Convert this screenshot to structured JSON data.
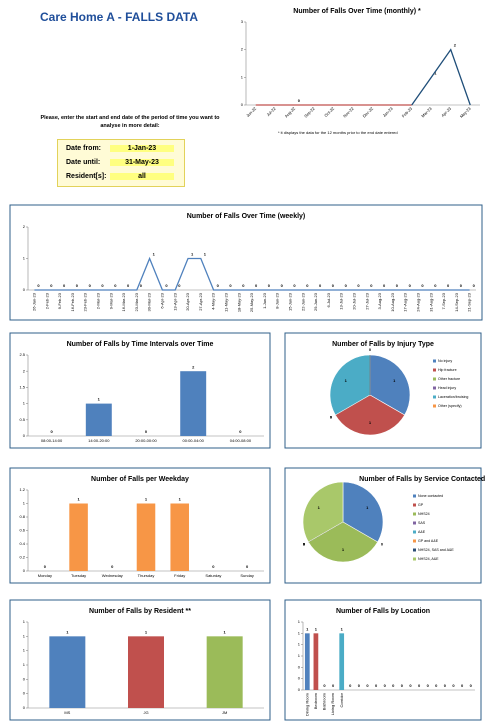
{
  "header": {
    "title": "Care Home A - FALLS DATA"
  },
  "form": {
    "instruction": "Please, enter the start and end date of the period of time you want to analyse in more detail:",
    "fields": [
      {
        "label": "Date from:",
        "value": "1-Jan-23"
      },
      {
        "label": "Date until:",
        "value": "31-May-23"
      },
      {
        "label": "Resident[s]:",
        "value": "all"
      }
    ]
  },
  "chart_data": [
    {
      "type": "line",
      "title": "Number of Falls Over Time (monthly) *",
      "note": "* it displays the data for the 12 months prior to the end date entered",
      "categories": [
        "Jun-22",
        "Jul-22",
        "Aug-22",
        "Sep-22",
        "Oct-22",
        "Nov-22",
        "Dec-22",
        "Jan-23",
        "Feb-23",
        "Mar-23",
        "Apr-23",
        "May-23"
      ],
      "series": [
        {
          "color": "#c0504d",
          "values": [
            0,
            0,
            0,
            0,
            0,
            0,
            0,
            0,
            0,
            null,
            null,
            null
          ],
          "value_labels": [
            null,
            null,
            "0",
            null,
            null,
            null,
            null,
            null,
            null,
            null,
            null,
            null
          ]
        },
        {
          "color": "#1f4e79",
          "values": [
            null,
            null,
            null,
            null,
            null,
            null,
            null,
            null,
            0,
            1,
            2,
            0
          ],
          "value_labels": [
            null,
            null,
            null,
            null,
            null,
            null,
            null,
            null,
            null,
            "1",
            "2",
            null
          ]
        }
      ],
      "ylim": [
        0,
        3
      ],
      "yticks": [
        0,
        1,
        2,
        3
      ]
    },
    {
      "type": "line",
      "title": "Number of Falls Over Time  (weekly)",
      "categories": [
        "26-Jan-23",
        "2-Feb-23",
        "9-Feb-23",
        "16-Feb-23",
        "23-Feb-23",
        "2-Mar-23",
        "9-Mar-23",
        "16-Mar-23",
        "23-Mar-23",
        "30-Mar-23",
        "6-Apr-23",
        "13-Apr-23",
        "20-Apr-23",
        "27-Apr-23",
        "4-May-23",
        "11-May-23",
        "18-May-23",
        "25-May-23",
        "1-Jun-23",
        "8-Jun-23",
        "15-Jun-23",
        "22-Jun-23",
        "29-Jun-23",
        "6-Jul-23",
        "13-Jul-23",
        "20-Jul-23",
        "27-Jul-23",
        "3-Aug-23",
        "10-Aug-23",
        "17-Aug-23",
        "24-Aug-23",
        "31-Aug-23",
        "7-Sep-23",
        "14-Sep-23",
        "21-Sep-23"
      ],
      "series": [
        {
          "color": "#4f81bd",
          "values": [
            0,
            0,
            0,
            0,
            0,
            0,
            0,
            0,
            0,
            1,
            0,
            0,
            1,
            1,
            0,
            0,
            0,
            0,
            0,
            0,
            0,
            0,
            0,
            0,
            0,
            0,
            0,
            0,
            0,
            0,
            0,
            0,
            0,
            0,
            0
          ]
        }
      ],
      "data_labels": true,
      "ylim": [
        0,
        2
      ],
      "yticks": [
        0,
        1,
        2
      ]
    },
    {
      "type": "bar",
      "title": "Number of Falls by Time Intervals over Time",
      "categories": [
        "08:00-14:00",
        "14:00-20:00",
        "20:00-00:00",
        "00:00-04:00",
        "04:00-08:00"
      ],
      "values": [
        0,
        1,
        0,
        2,
        0
      ],
      "colors": [
        "#4f81bd"
      ],
      "data_labels": true,
      "ylim": [
        0,
        2.5
      ],
      "yticks": [
        0,
        0.5,
        1,
        1.5,
        2,
        2.5
      ]
    },
    {
      "type": "pie",
      "title": "Number of Falls by Injury Type",
      "categories": [
        "No injury",
        "Hip fracture",
        "Other fracture",
        "Head injury",
        "Laceration/bruising",
        "Other (specify)"
      ],
      "values": [
        1,
        1,
        0,
        0,
        1,
        0
      ],
      "colors": [
        "#4f81bd",
        "#c0504d",
        "#9bbb59",
        "#8064a2",
        "#4bacc6",
        "#f79646"
      ]
    },
    {
      "type": "bar",
      "title": "Number of Falls per Weekday",
      "categories": [
        "Monday",
        "Tuesday",
        "Wednesday",
        "Thursday",
        "Friday",
        "Saturday",
        "Sunday"
      ],
      "values": [
        0,
        1,
        0,
        1,
        1,
        0,
        0
      ],
      "colors": [
        "#f79646"
      ],
      "data_labels": true,
      "ylim": [
        0,
        1.2
      ],
      "yticks": [
        0,
        0.2,
        0.4,
        0.6,
        0.8,
        1,
        1.2
      ]
    },
    {
      "type": "pie",
      "title": "Number of Falls by Service Contacted",
      "categories": [
        "None contacted",
        "GP",
        "NHS24",
        "SAS",
        "A&E",
        "GP and A&E",
        "NHS24, SAS and A&E",
        "NHS24, A&E"
      ],
      "values": [
        1,
        0,
        1,
        0,
        0,
        0,
        0,
        1
      ],
      "colors": [
        "#4f81bd",
        "#c0504d",
        "#9bbb59",
        "#8064a2",
        "#4bacc6",
        "#f79646",
        "#2c4d75",
        "#a9c86a"
      ]
    },
    {
      "type": "bar",
      "title": "Number of Falls by Resident **",
      "categories": [
        "MS",
        "JG",
        "JM"
      ],
      "values": [
        1,
        1,
        1
      ],
      "colors": [
        "#4f81bd",
        "#c0504d",
        "#9bbb59"
      ],
      "data_labels": true,
      "ylim": [
        0,
        1.2
      ],
      "yticks": [
        0,
        {
          "value": 0.2,
          "label": "0"
        },
        {
          "value": 0.4,
          "label": "0"
        },
        {
          "value": 0.6,
          "label": "1"
        },
        {
          "value": 0.8,
          "label": "1"
        },
        1,
        {
          "value": 1.2,
          "label": "1"
        }
      ]
    },
    {
      "type": "bar",
      "title": "Number of Falls by Location",
      "categories": [
        "Dining Room",
        "Bedroom",
        "Bathroom",
        "Living Room",
        "Corridor",
        null,
        null,
        null,
        null,
        null,
        null,
        null,
        null,
        null,
        null,
        null,
        null,
        null,
        null,
        null
      ],
      "values": [
        1,
        1,
        0,
        0,
        1,
        0,
        0,
        0,
        0,
        0,
        0,
        0,
        0,
        0,
        0,
        0,
        0,
        0,
        0,
        0
      ],
      "colors": [
        "#4f81bd",
        "#c0504d",
        "#9bbb59",
        "#8064a2",
        "#4bacc6",
        "#f79646"
      ],
      "data_labels": true,
      "ylim": [
        0,
        1.2
      ],
      "yticks": [
        0,
        {
          "value": 0.2,
          "label": "0"
        },
        {
          "value": 0.4,
          "label": "0"
        },
        {
          "value": 0.6,
          "label": "1"
        },
        {
          "value": 0.8,
          "label": "1"
        },
        1,
        {
          "value": 1.2,
          "label": "1"
        }
      ]
    }
  ]
}
